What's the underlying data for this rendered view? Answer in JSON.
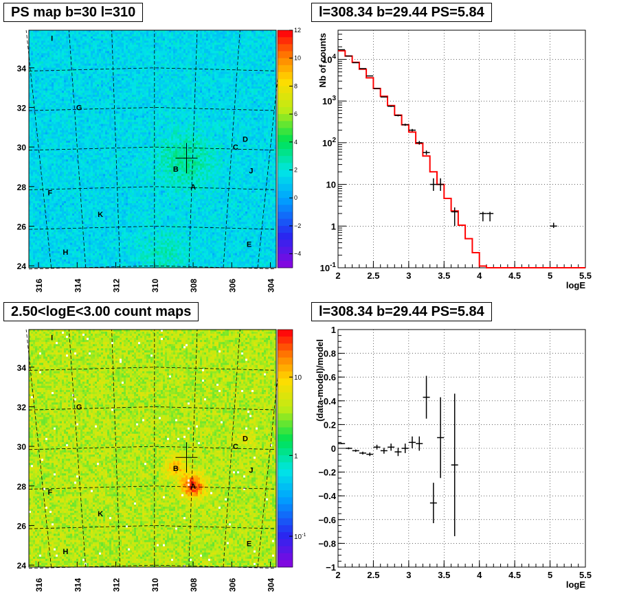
{
  "panels": {
    "top_left": {
      "title": "PS map b=30 l=310"
    },
    "top_right": {
      "title": "l=308.34 b=29.44 PS=5.84"
    },
    "bottom_left": {
      "title": "2.50<logE<3.00 count maps"
    },
    "bottom_right": {
      "title": "l=308.34 b=29.44 PS=5.84"
    }
  },
  "colors": {
    "model_line": "#ff0000",
    "data_points": "#000000",
    "grid": "#000000"
  },
  "chart_data": [
    {
      "type": "heatmap",
      "title": "PS map b=30 l=310",
      "x_tick_labels": [
        "316",
        "314",
        "312",
        "310",
        "308",
        "306",
        "304"
      ],
      "y_tick_labels": [
        "24",
        "26",
        "28",
        "30",
        "32",
        "34"
      ],
      "xlim": [
        316.5,
        303.7
      ],
      "ylim": [
        23.9,
        35.9
      ],
      "colorbar": {
        "min": -5,
        "max": 12,
        "tick_labels": [
          "12",
          "10",
          "8",
          "6",
          "4",
          "2",
          "0",
          "−2",
          "−4"
        ]
      },
      "sources": [
        {
          "name": "A",
          "l": 308.0,
          "b": 28.0
        },
        {
          "name": "B",
          "l": 308.9,
          "b": 28.9
        },
        {
          "name": "C",
          "l": 305.8,
          "b": 30.0
        },
        {
          "name": "D",
          "l": 305.3,
          "b": 30.4
        },
        {
          "name": "E",
          "l": 305.1,
          "b": 25.1
        },
        {
          "name": "F",
          "l": 315.4,
          "b": 27.7
        },
        {
          "name": "G",
          "l": 313.9,
          "b": 32.0
        },
        {
          "name": "H",
          "l": 314.6,
          "b": 24.7
        },
        {
          "name": "I",
          "l": 315.3,
          "b": 35.5
        },
        {
          "name": "J",
          "l": 305.0,
          "b": 28.8
        },
        {
          "name": "K",
          "l": 312.8,
          "b": 26.6
        }
      ],
      "cross": {
        "l": 308.34,
        "b": 29.44
      }
    },
    {
      "type": "line",
      "title": "l=308.34 b=29.44 PS=5.84",
      "xlabel": "logE",
      "ylabel": "Nb of counts",
      "yscale": "log",
      "xlim": [
        2,
        5.5
      ],
      "ylim": [
        0.1,
        50000
      ],
      "x_tick_labels": [
        "2",
        "2.5",
        "3",
        "3.5",
        "4",
        "4.5",
        "5",
        "5.5"
      ],
      "y_tick_labels": [
        "10^-1",
        "1",
        "10",
        "10^2",
        "10^3",
        "10^4"
      ],
      "grid": true,
      "series": [
        {
          "kind": "step",
          "bin_edges": [
            2.0,
            2.1,
            2.2,
            2.3,
            2.4,
            2.5,
            2.6,
            2.7,
            2.8,
            2.9,
            3.0,
            3.1,
            3.2,
            3.3,
            3.4,
            3.5,
            3.6,
            3.7,
            3.8,
            3.9,
            4.0,
            4.1,
            5.5
          ],
          "values": [
            16000,
            12000,
            8500,
            5800,
            3600,
            2000,
            1300,
            780,
            460,
            270,
            180,
            96,
            48,
            20,
            10,
            4.6,
            2.3,
            1.05,
            0.5,
            0.23,
            0.11,
            0.1
          ]
        },
        {
          "kind": "points",
          "x": [
            2.05,
            2.15,
            2.25,
            2.35,
            2.45,
            2.55,
            2.65,
            2.75,
            2.85,
            2.95,
            3.05,
            3.15,
            3.25,
            3.35,
            3.45,
            3.65,
            4.05,
            4.15,
            5.05
          ],
          "y": [
            17000,
            12000,
            8300,
            6000,
            4000,
            2000,
            1250,
            750,
            450,
            270,
            200,
            100,
            58,
            10,
            10,
            2.2,
            2,
            2,
            1
          ],
          "yerr_low": [
            16870,
            11890,
            8210,
            5920,
            3940,
            1955,
            1215,
            723,
            429,
            254,
            186,
            90,
            51,
            7,
            7,
            1.0,
            1.3,
            1.3,
            0.9
          ],
          "yerr_high": [
            17130,
            12110,
            8390,
            6080,
            4060,
            2045,
            1285,
            777,
            471,
            286,
            214,
            110,
            65,
            14,
            14,
            2.8,
            2.2,
            2.2,
            1.2
          ]
        }
      ]
    },
    {
      "type": "heatmap",
      "title": "2.50<logE<3.00 count maps",
      "x_tick_labels": [
        "316",
        "314",
        "312",
        "310",
        "308",
        "306",
        "304"
      ],
      "y_tick_labels": [
        "24",
        "26",
        "28",
        "30",
        "32",
        "34"
      ],
      "xlim": [
        316.5,
        303.7
      ],
      "ylim": [
        23.9,
        35.9
      ],
      "colorbar": {
        "scale": "log",
        "tick_labels": [
          "10",
          "1",
          "10^-1"
        ]
      },
      "sources": [
        {
          "name": "A",
          "l": 308.0,
          "b": 28.0
        },
        {
          "name": "B",
          "l": 308.9,
          "b": 28.9
        },
        {
          "name": "C",
          "l": 305.8,
          "b": 30.0
        },
        {
          "name": "D",
          "l": 305.3,
          "b": 30.4
        },
        {
          "name": "E",
          "l": 305.1,
          "b": 25.1
        },
        {
          "name": "F",
          "l": 315.4,
          "b": 27.7
        },
        {
          "name": "G",
          "l": 313.9,
          "b": 32.0
        },
        {
          "name": "H",
          "l": 314.6,
          "b": 24.7
        },
        {
          "name": "I",
          "l": 315.3,
          "b": 35.5
        },
        {
          "name": "J",
          "l": 305.0,
          "b": 28.8
        },
        {
          "name": "K",
          "l": 312.8,
          "b": 26.6
        }
      ],
      "cross": {
        "l": 308.34,
        "b": 29.44
      }
    },
    {
      "type": "scatter",
      "title": "l=308.34 b=29.44 PS=5.84",
      "xlabel": "logE",
      "ylabel": "(data-model)/model",
      "xlim": [
        2,
        5.5
      ],
      "ylim": [
        -1,
        1
      ],
      "x_tick_labels": [
        "2",
        "2.5",
        "3",
        "3.5",
        "4",
        "4.5",
        "5",
        "5.5"
      ],
      "y_tick_labels": [
        "−1",
        "−0.8",
        "−0.6",
        "−0.4",
        "−0.2",
        "0",
        "0.2",
        "0.4",
        "0.6",
        "0.8",
        "1"
      ],
      "grid": true,
      "points": {
        "x": [
          2.05,
          2.15,
          2.25,
          2.35,
          2.45,
          2.55,
          2.65,
          2.75,
          2.85,
          2.95,
          3.05,
          3.15,
          3.25,
          3.35,
          3.45,
          3.65
        ],
        "y": [
          0.04,
          0.0,
          -0.02,
          -0.04,
          -0.05,
          0.01,
          -0.02,
          0.01,
          -0.03,
          0.0,
          0.05,
          0.04,
          0.43,
          -0.46,
          0.09,
          -0.14
        ],
        "yerr": [
          0.005,
          0.008,
          0.01,
          0.012,
          0.015,
          0.02,
          0.025,
          0.03,
          0.035,
          0.04,
          0.05,
          0.06,
          0.18,
          0.17,
          0.34,
          0.6
        ]
      }
    }
  ]
}
